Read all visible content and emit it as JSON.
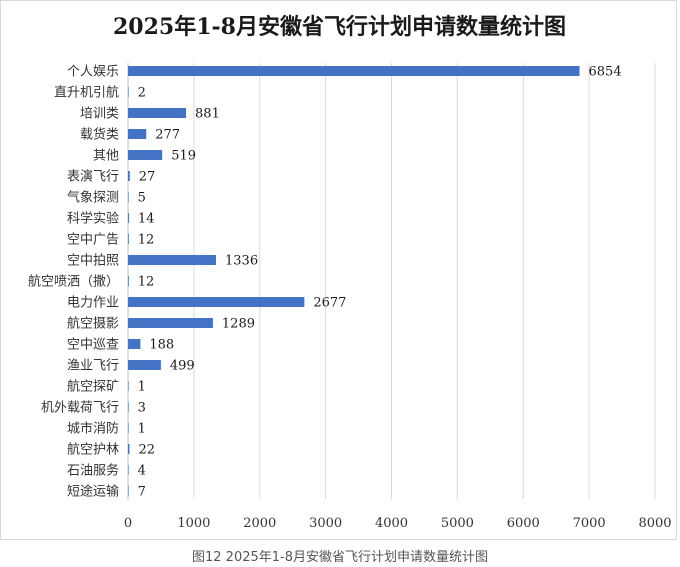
{
  "chart_data": {
    "type": "bar",
    "orientation": "horizontal",
    "title": "2025年1-8月安徽省飞行计划申请数量统计图",
    "categories": [
      "个人娱乐",
      "直升机引航",
      "培训类",
      "载货类",
      "其他",
      "表演飞行",
      "气象探测",
      "科学实验",
      "空中广告",
      "空中拍照",
      "航空喷洒（撒）",
      "电力作业",
      "航空摄影",
      "空中巡查",
      "渔业飞行",
      "航空探矿",
      "机外载荷飞行",
      "城市消防",
      "航空护林",
      "石油服务",
      "短途运输"
    ],
    "values": [
      6854,
      2,
      881,
      277,
      519,
      27,
      5,
      14,
      12,
      1336,
      12,
      2677,
      1289,
      188,
      499,
      1,
      3,
      1,
      22,
      4,
      7
    ],
    "value_labels": [
      "6854",
      "2",
      "881",
      "277",
      "519",
      "27",
      "5",
      "14",
      "12",
      "1336",
      "12",
      "2677",
      "1289",
      "188",
      "499",
      "1",
      "3",
      "1",
      "22",
      "4",
      "7"
    ],
    "xlim": [
      0,
      8000
    ],
    "xticks": [
      "0",
      "1000",
      "2000",
      "3000",
      "4000",
      "5000",
      "6000",
      "7000",
      "8000"
    ],
    "xlabel": "",
    "ylabel": "",
    "grid": "vertical",
    "legend": "none",
    "colors": {
      "bar": "#4472C4",
      "grid": "#d9d9d9",
      "axis": "#bfbfbf"
    }
  },
  "caption": "图12 2025年1-8月安徽省飞行计划申请数量统计图"
}
